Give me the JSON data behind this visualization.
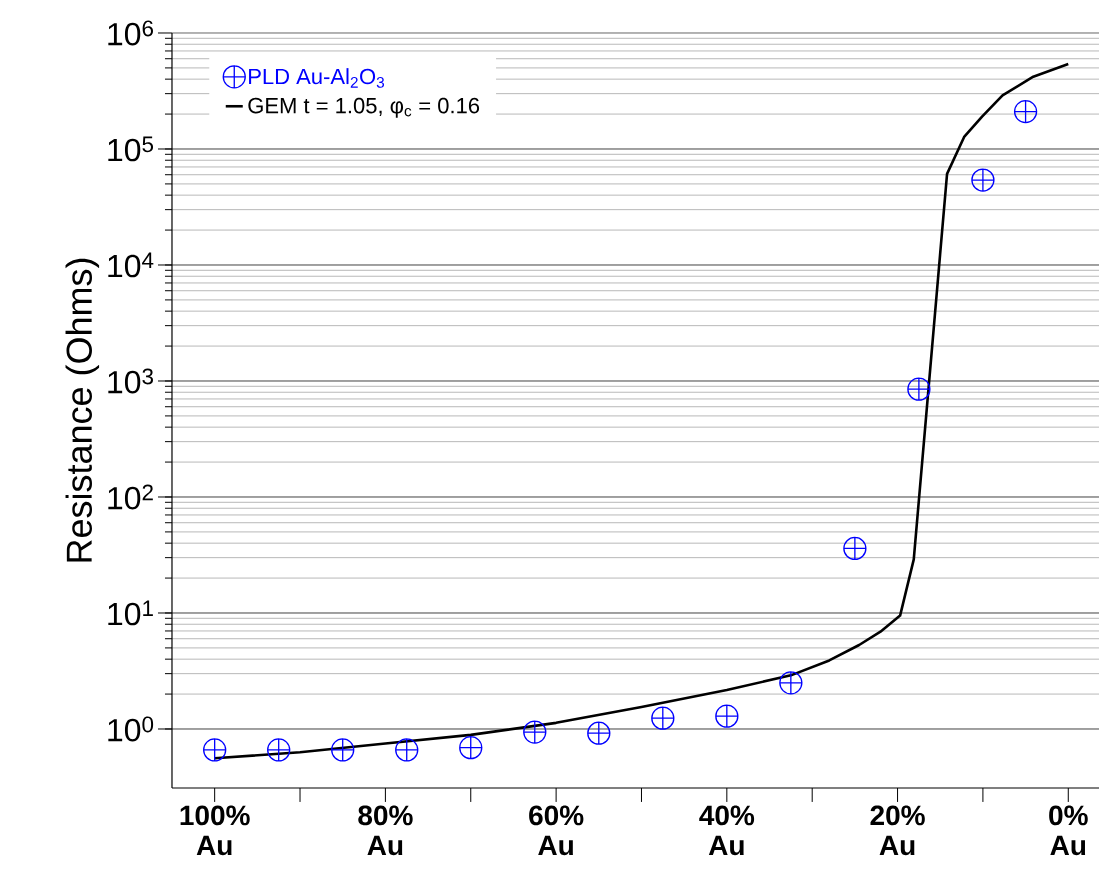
{
  "chart_data": {
    "type": "scatter",
    "ylabel": "Resistance (Ohms)",
    "log": "y",
    "grid": "y",
    "legend": "top left",
    "xlim": [
      105,
      -3.6
    ],
    "ylim": [
      0.31,
      1000000
    ],
    "xticks": [
      {
        "value": 100,
        "label": "100% Au"
      },
      {
        "value": 90,
        "label": null
      },
      {
        "value": 80,
        "label": "80% Au"
      },
      {
        "value": 70,
        "label": null
      },
      {
        "value": 60,
        "label": "60% Au"
      },
      {
        "value": 50,
        "label": null
      },
      {
        "value": 40,
        "label": "40% Au"
      },
      {
        "value": 30,
        "label": null
      },
      {
        "value": 20,
        "label": "20% Au"
      },
      {
        "value": 10,
        "label": null
      },
      {
        "value": 0,
        "label": "0% Au"
      }
    ],
    "yticks": [
      {
        "value": 1,
        "label": "10$^{0}$"
      },
      {
        "value": 10,
        "label": "10$^{1}$"
      },
      {
        "value": 100,
        "label": "10$^{2}$"
      },
      {
        "value": 1000,
        "label": "10$^{3}$"
      },
      {
        "value": 10000,
        "label": "10$^{4}$"
      },
      {
        "value": 100000,
        "label": "10$^{5}$"
      },
      {
        "value": 1000000,
        "label": "10$^{6}$"
      }
    ],
    "series": [
      {
        "name": "PLD Au-Al$_{2}$O$_{3}$",
        "color": "#0000ff",
        "x": [
          100,
          92.5,
          85,
          77.5,
          70,
          62.5,
          55,
          47.5,
          40,
          32.5,
          25,
          17.5,
          10,
          5
        ],
        "values": [
          0.66,
          0.66,
          0.66,
          0.66,
          0.69,
          0.94,
          0.92,
          1.24,
          1.29,
          2.5,
          36,
          850,
          54000,
          210000
        ]
      },
      {
        "name": "GEM  t = 1.05, φ$_{c}$ = 0.16",
        "type": "line",
        "color": "#000000",
        "marker": "none",
        "line_style": "solid",
        "x": [
          100,
          90,
          80,
          70,
          60,
          50,
          40,
          32.5,
          28,
          24.5,
          22,
          19.7,
          18.1,
          14.2,
          12.2,
          10.1,
          7.7,
          4.1,
          0
        ],
        "values": [
          0.56,
          0.63,
          0.75,
          0.89,
          1.13,
          1.55,
          2.17,
          2.9,
          3.9,
          5.3,
          6.9,
          9.5,
          29,
          61000,
          127000,
          190000,
          290000,
          420000,
          540000
        ]
      }
    ]
  }
}
